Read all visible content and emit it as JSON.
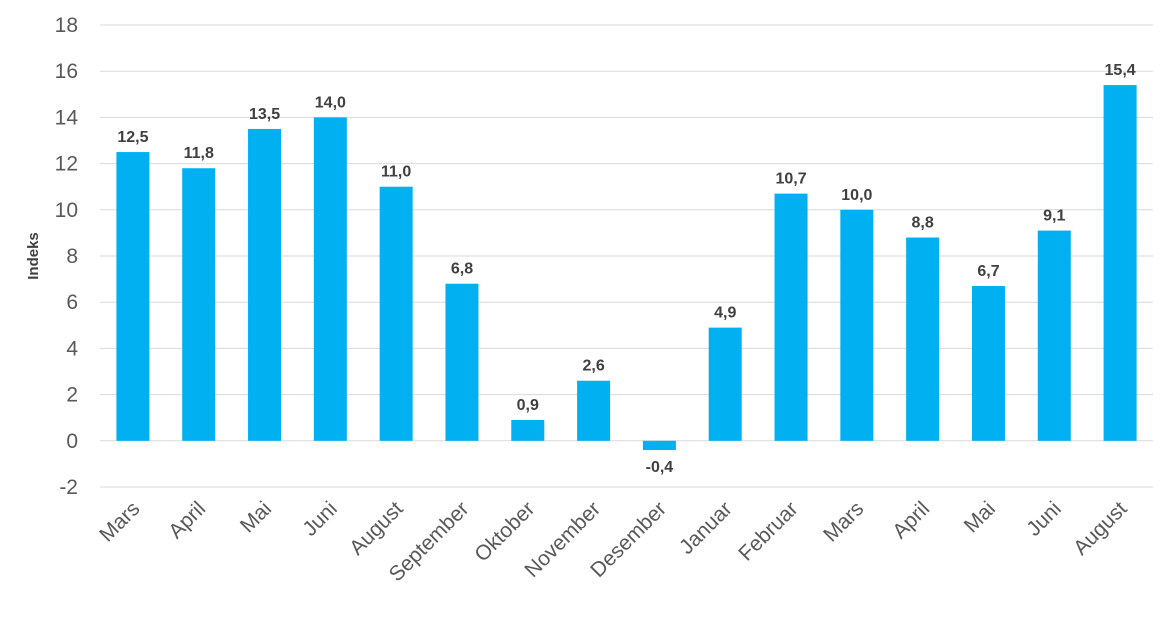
{
  "chart_data": {
    "type": "bar",
    "ylabel": "Indeks",
    "xlabel": "",
    "ylim": [
      -2,
      18
    ],
    "yticks": [
      "-2",
      "0",
      "2",
      "4",
      "6",
      "8",
      "10",
      "12",
      "14",
      "16",
      "18"
    ],
    "grid": true,
    "legend": "none",
    "bar_color": "#00b0f0",
    "categories": [
      "Mars",
      "April",
      "Mai",
      "Juni",
      "August",
      "September",
      "Oktober",
      "November",
      "Desember",
      "Januar",
      "Februar",
      "Mars",
      "April",
      "Mai",
      "Juni",
      "August"
    ],
    "values": [
      12.5,
      11.8,
      13.5,
      14.0,
      11.0,
      6.8,
      0.9,
      2.6,
      -0.4,
      4.9,
      10.7,
      10.0,
      8.8,
      6.7,
      9.1,
      15.4
    ],
    "data_labels": [
      "12,5",
      "11,8",
      "13,5",
      "14,0",
      "11,0",
      "6,8",
      "0,9",
      "2,6",
      "-0,4",
      "4,9",
      "10,7",
      "10,0",
      "8,8",
      "6,7",
      "9,1",
      "15,4"
    ]
  }
}
